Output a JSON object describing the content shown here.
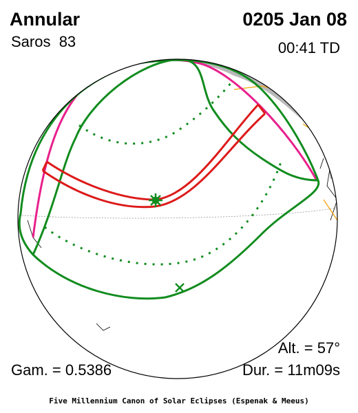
{
  "header": {
    "title": "Annular",
    "date": "0205 Jan 08",
    "saros": "Saros  83",
    "time": "00:41 TD"
  },
  "stats": {
    "altitude": "Alt. = 57°",
    "gamma": "Gam. = 0.5386",
    "duration": "Dur. = 11m09s"
  },
  "footer": {
    "credit": "Five Millennium Canon of Solar Eclipses (Espenak & Meeus)"
  }
}
